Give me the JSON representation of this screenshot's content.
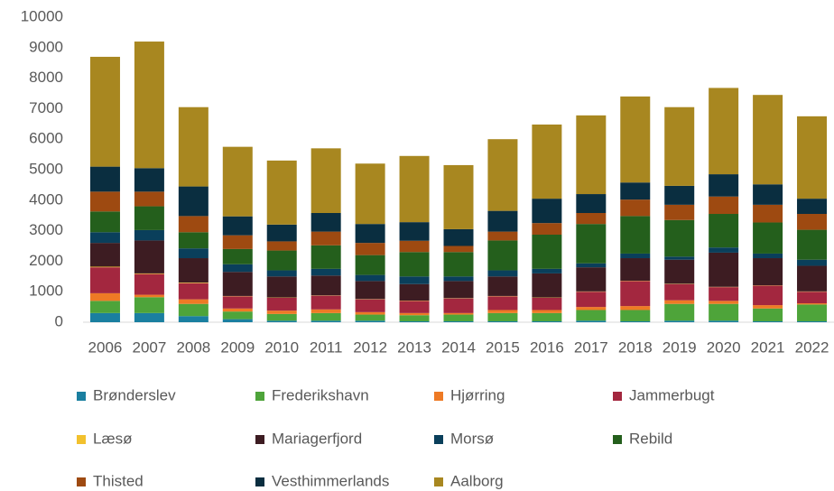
{
  "chart_data": {
    "type": "stacked_bar",
    "categories": [
      "2006",
      "2007",
      "2008",
      "2009",
      "2010",
      "2011",
      "2012",
      "2013",
      "2014",
      "2015",
      "2016",
      "2017",
      "2018",
      "2019",
      "2020",
      "2021",
      "2022"
    ],
    "ylim": [
      0,
      10000
    ],
    "yticks": [
      0,
      1000,
      2000,
      3000,
      4000,
      5000,
      6000,
      7000,
      8000,
      9000,
      10000
    ],
    "grid": false,
    "legend": "bottom",
    "series": [
      {
        "name": "Brønderslev",
        "color": "#1a7fa0",
        "values": [
          300,
          300,
          200,
          100,
          50,
          50,
          50,
          30,
          30,
          30,
          30,
          50,
          30,
          50,
          50,
          30,
          30
        ]
      },
      {
        "name": "Frederikshavn",
        "color": "#4ea43a",
        "values": [
          400,
          520,
          400,
          250,
          220,
          250,
          200,
          200,
          220,
          270,
          270,
          350,
          370,
          550,
          550,
          420,
          550
        ]
      },
      {
        "name": "Hjørring",
        "color": "#ee7a25",
        "values": [
          250,
          80,
          150,
          100,
          110,
          120,
          80,
          70,
          50,
          100,
          100,
          100,
          130,
          120,
          100,
          110,
          40
        ]
      },
      {
        "name": "Jammerbugt",
        "color": "#a3273f",
        "values": [
          850,
          680,
          530,
          400,
          420,
          450,
          420,
          400,
          480,
          450,
          400,
          500,
          820,
          530,
          450,
          640,
          380
        ]
      },
      {
        "name": "Læsø",
        "color": "#f2c12e",
        "values": [
          20,
          20,
          20,
          10,
          10,
          10,
          10,
          10,
          10,
          10,
          10,
          10,
          10,
          10,
          10,
          10,
          10
        ]
      },
      {
        "name": "Mariagerfjord",
        "color": "#3d1c22",
        "values": [
          780,
          1080,
          800,
          790,
          690,
          650,
          590,
          540,
          560,
          640,
          790,
          790,
          740,
          790,
          1120,
          890,
          840
        ]
      },
      {
        "name": "Morsø",
        "color": "#0a3f5b",
        "values": [
          350,
          340,
          320,
          250,
          200,
          220,
          200,
          250,
          150,
          200,
          150,
          130,
          150,
          100,
          170,
          150,
          200
        ]
      },
      {
        "name": "Rebild",
        "color": "#245f1c",
        "values": [
          680,
          780,
          530,
          500,
          650,
          770,
          650,
          800,
          800,
          980,
          1120,
          1290,
          1230,
          1200,
          1100,
          1020,
          980
        ]
      },
      {
        "name": "Thisted",
        "color": "#9e4a11",
        "values": [
          650,
          480,
          530,
          450,
          300,
          450,
          400,
          370,
          200,
          290,
          380,
          360,
          540,
          500,
          570,
          580,
          520
        ]
      },
      {
        "name": "Vesthimmerlands",
        "color": "#0a2e40",
        "values": [
          820,
          770,
          970,
          620,
          550,
          610,
          620,
          610,
          550,
          680,
          800,
          620,
          560,
          620,
          730,
          670,
          500
        ]
      },
      {
        "name": "Aalborg",
        "color": "#a88720",
        "values": [
          3600,
          4150,
          2600,
          2280,
          2100,
          2120,
          1980,
          2170,
          2100,
          2350,
          2430,
          2580,
          2820,
          2580,
          2830,
          2930,
          2700
        ]
      }
    ]
  }
}
